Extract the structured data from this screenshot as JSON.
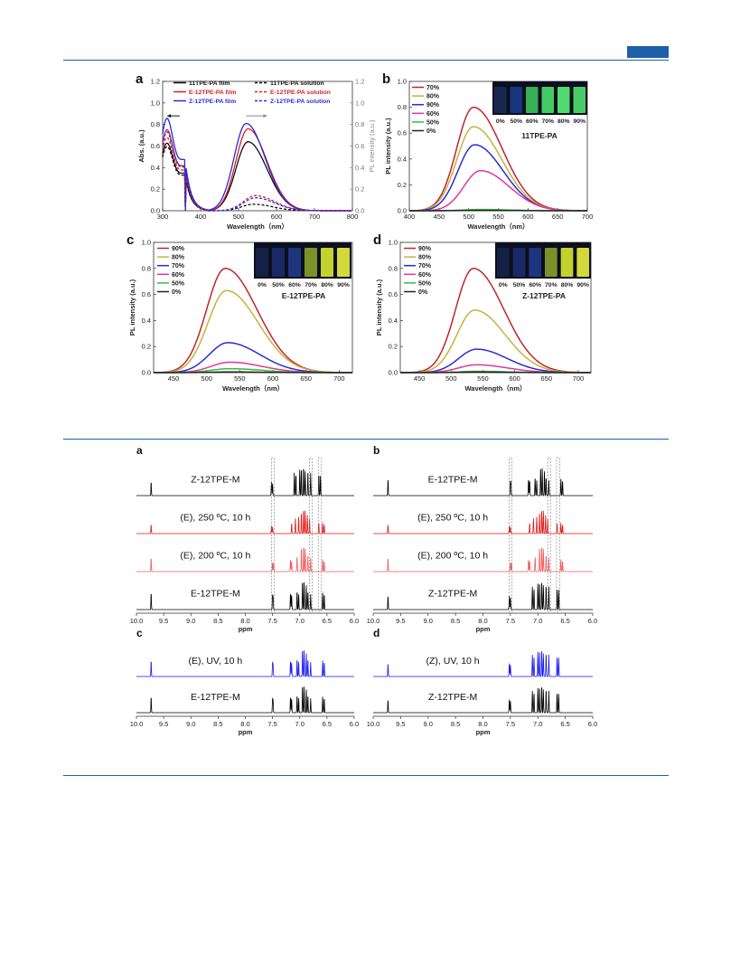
{
  "pl": {
    "panels": [
      {
        "letter": "a",
        "xlabel": "Wavelength（nm）",
        "ylabel_left": "Abs. (a.u.)",
        "ylabel_right": "PL intensity (a.u.)",
        "xlim": [
          300,
          800
        ],
        "ylim": [
          0,
          1.2
        ],
        "xticks": [
          "300",
          "400",
          "500",
          "600",
          "700",
          "800"
        ],
        "yticks": [
          "0.0",
          "0.2",
          "0.4",
          "0.6",
          "0.8",
          "1.0",
          "1.2"
        ],
        "legend": [
          "11TPE-PA film",
          "E-12TPE-PA film",
          "Z-12TPE-PA film",
          "11TPE-PA solution",
          "E-12TPE-PA solution",
          "Z-12TPE-PA solution"
        ]
      },
      {
        "letter": "b",
        "sample": "11TPE-PA",
        "xlabel": "Wavelength（nm）",
        "ylabel": "PL intensity (a.u.)",
        "xlim": [
          400,
          700
        ],
        "ylim": [
          0,
          1.0
        ],
        "xticks": [
          "400",
          "450",
          "500",
          "550",
          "600",
          "650",
          "700"
        ],
        "yticks": [
          "0.0",
          "0.2",
          "0.4",
          "0.6",
          "0.8",
          "1.0"
        ],
        "legend": [
          "70%",
          "80%",
          "90%",
          "60%",
          "50%",
          "0%"
        ],
        "vial_labels": [
          "0%",
          "50%",
          "60%",
          "70%",
          "80%",
          "90%"
        ]
      },
      {
        "letter": "c",
        "sample": "E-12TPE-PA",
        "xlabel": "Wavelength（nm）",
        "ylabel": "PL intensity (a.u.)",
        "xlim": [
          420,
          720
        ],
        "ylim": [
          0,
          1.0
        ],
        "xticks": [
          "450",
          "500",
          "550",
          "600",
          "650",
          "700"
        ],
        "yticks": [
          "0.0",
          "0.2",
          "0.4",
          "0.6",
          "0.8",
          "1.0"
        ],
        "legend": [
          "90%",
          "80%",
          "70%",
          "60%",
          "50%",
          "0%"
        ],
        "vial_labels": [
          "0%",
          "50%",
          "60%",
          "70%",
          "80%",
          "90%"
        ]
      },
      {
        "letter": "d",
        "sample": "Z-12TPE-PA",
        "xlabel": "Wavelength（nm）",
        "ylabel": "PL intensity (a.u.)",
        "xlim": [
          420,
          720
        ],
        "ylim": [
          0,
          1.0
        ],
        "xticks": [
          "450",
          "500",
          "550",
          "600",
          "650",
          "700"
        ],
        "yticks": [
          "0.0",
          "0.2",
          "0.4",
          "0.6",
          "0.8",
          "1.0"
        ],
        "legend": [
          "90%",
          "80%",
          "70%",
          "60%",
          "50%",
          "0%"
        ],
        "vial_labels": [
          "0%",
          "50%",
          "60%",
          "70%",
          "80%",
          "90%"
        ]
      }
    ]
  },
  "nmr": {
    "xlabel": "ppm",
    "xticks": [
      "10.0",
      "9.5",
      "9.0",
      "8.5",
      "8.0",
      "7.5",
      "7.0",
      "6.5",
      "6.0"
    ],
    "panels": [
      {
        "letter": "a",
        "traces": [
          {
            "label": "Z-12TPE-M",
            "color": "#000000",
            "kind": "Z"
          },
          {
            "label": "(E), 250 ºC, 10 h",
            "color": "#e01a1a",
            "kind": "mix"
          },
          {
            "label": "(E), 200 ºC, 10 h",
            "color": "#ee5c5c",
            "kind": "mix2"
          },
          {
            "label": "E-12TPE-M",
            "color": "#000000",
            "kind": "E"
          }
        ]
      },
      {
        "letter": "b",
        "traces": [
          {
            "label": "E-12TPE-M",
            "color": "#000000",
            "kind": "E"
          },
          {
            "label": "(E), 250 ºC, 10 h",
            "color": "#e01a1a",
            "kind": "mix"
          },
          {
            "label": "(E), 200 ºC, 10 h",
            "color": "#ee5c5c",
            "kind": "mix2"
          },
          {
            "label": "Z-12TPE-M",
            "color": "#000000",
            "kind": "Z"
          }
        ]
      },
      {
        "letter": "c",
        "traces": [
          {
            "label": "(E), UV, 10 h",
            "color": "#1a1aee",
            "kind": "E"
          },
          {
            "label": "E-12TPE-M",
            "color": "#000000",
            "kind": "E"
          }
        ]
      },
      {
        "letter": "d",
        "traces": [
          {
            "label": "(Z), UV, 10 h",
            "color": "#1a1aee",
            "kind": "Z"
          },
          {
            "label": "Z-12TPE-M",
            "color": "#000000",
            "kind": "Z"
          }
        ]
      }
    ]
  },
  "chart_data": [
    {
      "type": "line",
      "panel": "a",
      "xlabel": "Wavelength（nm）",
      "ylabel": "Abs. (a.u.)",
      "xlim": [
        300,
        800
      ],
      "ylim": [
        0,
        1.2
      ],
      "series": [
        {
          "name": "11TPE-PA film",
          "abs_peak_x": 310,
          "abs_peak_y": 0.6,
          "pl_peak_x": 525,
          "pl_peak_y": 0.64
        },
        {
          "name": "E-12TPE-PA film",
          "abs_peak_x": 310,
          "abs_peak_y": 0.72,
          "pl_peak_x": 525,
          "pl_peak_y": 0.76
        },
        {
          "name": "Z-12TPE-PA film",
          "abs_peak_x": 310,
          "abs_peak_y": 0.82,
          "pl_peak_x": 520,
          "pl_peak_y": 0.81
        },
        {
          "name": "11TPE-PA solution",
          "abs_peak_x": 310,
          "abs_peak_y": 0.57,
          "pl_peak_x": 540,
          "pl_peak_y": 0.06
        },
        {
          "name": "E-12TPE-PA solution",
          "abs_peak_x": 310,
          "abs_peak_y": 0.65,
          "pl_peak_x": 545,
          "pl_peak_y": 0.14
        },
        {
          "name": "Z-12TPE-PA solution",
          "abs_peak_x": 310,
          "abs_peak_y": 0.7,
          "pl_peak_x": 545,
          "pl_peak_y": 0.12
        }
      ]
    },
    {
      "type": "line",
      "panel": "b",
      "xlabel": "Wavelength（nm）",
      "ylabel": "PL intensity (a.u.)",
      "xlim": [
        400,
        700
      ],
      "ylim": [
        0,
        1.0
      ],
      "series": [
        {
          "name": "70%",
          "peak_x": 508,
          "peak_y": 0.8,
          "color": "#c0262d"
        },
        {
          "name": "80%",
          "peak_x": 508,
          "peak_y": 0.65,
          "color": "#c6b33a"
        },
        {
          "name": "90%",
          "peak_x": 510,
          "peak_y": 0.51,
          "color": "#2b2bd6"
        },
        {
          "name": "60%",
          "peak_x": 520,
          "peak_y": 0.31,
          "color": "#e0389a"
        },
        {
          "name": "50%",
          "peak_x": 520,
          "peak_y": 0.01,
          "color": "#2fbf3f"
        },
        {
          "name": "0%",
          "peak_x": 520,
          "peak_y": 0.003,
          "color": "#222222"
        }
      ]
    },
    {
      "type": "line",
      "panel": "c",
      "xlabel": "Wavelength（nm）",
      "ylabel": "PL intensity (a.u.)",
      "xlim": [
        420,
        720
      ],
      "ylim": [
        0,
        1.0
      ],
      "series": [
        {
          "name": "90%",
          "peak_x": 528,
          "peak_y": 0.8,
          "color": "#c0262d"
        },
        {
          "name": "80%",
          "peak_x": 530,
          "peak_y": 0.63,
          "color": "#c6b33a"
        },
        {
          "name": "70%",
          "peak_x": 532,
          "peak_y": 0.23,
          "color": "#2b2bd6"
        },
        {
          "name": "60%",
          "peak_x": 535,
          "peak_y": 0.08,
          "color": "#e0389a"
        },
        {
          "name": "50%",
          "peak_x": 535,
          "peak_y": 0.03,
          "color": "#2fbf3f"
        },
        {
          "name": "0%",
          "peak_x": 535,
          "peak_y": 0.005,
          "color": "#222222"
        }
      ]
    },
    {
      "type": "line",
      "panel": "d",
      "xlabel": "Wavelength（nm）",
      "ylabel": "PL intensity (a.u.)",
      "xlim": [
        420,
        720
      ],
      "ylim": [
        0,
        1.0
      ],
      "series": [
        {
          "name": "90%",
          "peak_x": 535,
          "peak_y": 0.8,
          "color": "#c0262d"
        },
        {
          "name": "80%",
          "peak_x": 537,
          "peak_y": 0.48,
          "color": "#c6b33a"
        },
        {
          "name": "70%",
          "peak_x": 540,
          "peak_y": 0.18,
          "color": "#2b2bd6"
        },
        {
          "name": "60%",
          "peak_x": 540,
          "peak_y": 0.06,
          "color": "#e0389a"
        },
        {
          "name": "50%",
          "peak_x": 540,
          "peak_y": 0.01,
          "color": "#2fbf3f"
        },
        {
          "name": "0%",
          "peak_x": 540,
          "peak_y": 0.004,
          "color": "#222222"
        }
      ]
    }
  ],
  "colors": {
    "rule": "#1f5fa8",
    "red": "#e01a1a",
    "blue": "#1a1aee"
  }
}
